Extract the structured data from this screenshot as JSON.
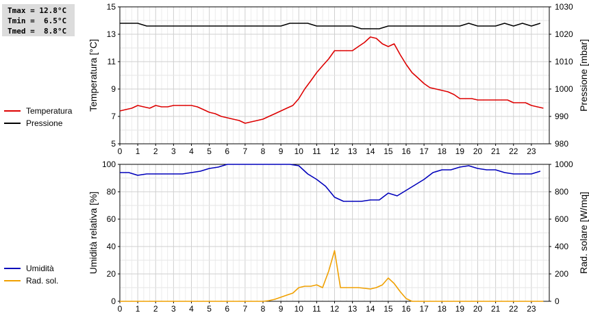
{
  "stats": {
    "tmax": "Tmax = 12.8°C",
    "tmin": "Tmin =  6.5°C",
    "tmed": "Tmed =  8.8°C"
  },
  "chart_data": [
    {
      "type": "line",
      "x_ticks": [
        "0",
        "1",
        "2",
        "3",
        "4",
        "5",
        "6",
        "7",
        "8",
        "9",
        "10",
        "11",
        "12",
        "13",
        "14",
        "15",
        "16",
        "17",
        "18",
        "19",
        "20",
        "21",
        "22",
        "23"
      ],
      "xlim": [
        0,
        24
      ],
      "ylabel_left": "Temperatura [°C]",
      "ylabel_right": "Pressione [mbar]",
      "ylim_left": [
        5,
        15
      ],
      "yticks_left": [
        "5",
        "7",
        "9",
        "11",
        "13",
        "15"
      ],
      "ylim_right": [
        980,
        1030
      ],
      "yticks_right": [
        "980",
        "990",
        "1000",
        "1010",
        "1020",
        "1030"
      ],
      "grid": true,
      "legend_placement": "left",
      "series": [
        {
          "name": "Temperatura",
          "axis": "left",
          "color": "#dd0000",
          "x": [
            0,
            0.33,
            0.67,
            1,
            1.33,
            1.67,
            2,
            2.33,
            2.67,
            3,
            3.33,
            3.67,
            4,
            4.33,
            4.67,
            5,
            5.33,
            5.67,
            6,
            6.33,
            6.67,
            7,
            7.33,
            7.67,
            8,
            8.33,
            8.67,
            9,
            9.33,
            9.67,
            10,
            10.33,
            10.67,
            11,
            11.33,
            11.67,
            12,
            12.33,
            12.67,
            13,
            13.33,
            13.67,
            14,
            14.33,
            14.67,
            15,
            15.33,
            15.67,
            16,
            16.33,
            16.67,
            17,
            17.33,
            17.67,
            18,
            18.33,
            18.67,
            19,
            19.33,
            19.67,
            20,
            20.33,
            20.67,
            21,
            21.33,
            21.67,
            22,
            22.33,
            22.67,
            23,
            23.33,
            23.67
          ],
          "y": [
            7.4,
            7.5,
            7.6,
            7.8,
            7.7,
            7.6,
            7.8,
            7.7,
            7.7,
            7.8,
            7.8,
            7.8,
            7.8,
            7.7,
            7.5,
            7.3,
            7.2,
            7.0,
            6.9,
            6.8,
            6.7,
            6.5,
            6.6,
            6.7,
            6.8,
            7.0,
            7.2,
            7.4,
            7.6,
            7.8,
            8.3,
            9.0,
            9.6,
            10.2,
            10.7,
            11.2,
            11.8,
            11.8,
            11.8,
            11.8,
            12.1,
            12.4,
            12.8,
            12.7,
            12.3,
            12.1,
            12.3,
            11.5,
            10.8,
            10.2,
            9.8,
            9.4,
            9.1,
            9.0,
            8.9,
            8.8,
            8.6,
            8.3,
            8.3,
            8.3,
            8.2,
            8.2,
            8.2,
            8.2,
            8.2,
            8.2,
            8.0,
            8.0,
            8.0,
            7.8,
            7.7,
            7.6
          ]
        },
        {
          "name": "Pressione",
          "axis": "right",
          "color": "#000000",
          "x": [
            0,
            0.5,
            1,
            1.5,
            2,
            2.5,
            3,
            3.5,
            4,
            4.5,
            5,
            5.5,
            6,
            6.5,
            7,
            7.5,
            8,
            8.5,
            9,
            9.5,
            10,
            10.5,
            11,
            11.5,
            12,
            12.5,
            13,
            13.5,
            14,
            14.5,
            15,
            15.5,
            16,
            16.5,
            17,
            17.5,
            18,
            18.5,
            19,
            19.5,
            20,
            20.5,
            21,
            21.5,
            22,
            22.5,
            23,
            23.5
          ],
          "y": [
            1024,
            1024,
            1024,
            1023,
            1023,
            1023,
            1023,
            1023,
            1023,
            1023,
            1023,
            1023,
            1023,
            1023,
            1023,
            1023,
            1023,
            1023,
            1023,
            1024,
            1024,
            1024,
            1023,
            1023,
            1023,
            1023,
            1023,
            1022,
            1022,
            1022,
            1023,
            1023,
            1023,
            1023,
            1023,
            1023,
            1023,
            1023,
            1023,
            1024,
            1023,
            1023,
            1023,
            1024,
            1023,
            1024,
            1023,
            1024
          ]
        }
      ]
    },
    {
      "type": "line",
      "x_ticks": [
        "0",
        "1",
        "2",
        "3",
        "4",
        "5",
        "6",
        "7",
        "8",
        "9",
        "10",
        "11",
        "12",
        "13",
        "14",
        "15",
        "16",
        "17",
        "18",
        "19",
        "20",
        "21",
        "22",
        "23"
      ],
      "xlim": [
        0,
        24
      ],
      "ylabel_left": "Umidità relativa [%]",
      "ylabel_right": "Rad. solare [W/mq]",
      "ylim_left": [
        0,
        100
      ],
      "yticks_left": [
        "0",
        "20",
        "40",
        "60",
        "80",
        "100"
      ],
      "ylim_right": [
        0,
        1000
      ],
      "yticks_right": [
        "0",
        "200",
        "400",
        "600",
        "800",
        "1000"
      ],
      "grid": true,
      "legend_placement": "left",
      "series": [
        {
          "name": "Umidità",
          "axis": "left",
          "color": "#0000bb",
          "x": [
            0,
            0.5,
            1,
            1.5,
            2,
            2.5,
            3,
            3.5,
            4,
            4.5,
            5,
            5.5,
            6,
            6.5,
            7,
            7.5,
            8,
            8.5,
            9,
            9.5,
            10,
            10.5,
            11,
            11.5,
            12,
            12.5,
            13,
            13.5,
            14,
            14.5,
            15,
            15.5,
            16,
            16.5,
            17,
            17.5,
            18,
            18.5,
            19,
            19.5,
            20,
            20.5,
            21,
            21.5,
            22,
            22.5,
            23,
            23.5
          ],
          "y": [
            94,
            94,
            92,
            93,
            93,
            93,
            93,
            93,
            94,
            95,
            97,
            98,
            100,
            100,
            100,
            100,
            100,
            100,
            100,
            100,
            99,
            93,
            89,
            84,
            76,
            73,
            73,
            73,
            74,
            74,
            79,
            77,
            81,
            85,
            89,
            94,
            96,
            96,
            98,
            99,
            97,
            96,
            96,
            94,
            93,
            93,
            93,
            95
          ]
        },
        {
          "name": "Rad. sol.",
          "axis": "right",
          "color": "#f0a000",
          "x": [
            0,
            1,
            2,
            3,
            4,
            5,
            6,
            7,
            8,
            8.33,
            8.67,
            9,
            9.33,
            9.67,
            10,
            10.33,
            10.67,
            11,
            11.33,
            11.67,
            12,
            12.33,
            12.67,
            13,
            13.33,
            13.67,
            14,
            14.33,
            14.67,
            15,
            15.33,
            15.67,
            16,
            16.33,
            16.67,
            17,
            18,
            19,
            20,
            21,
            22,
            23,
            23.67
          ],
          "y": [
            0,
            0,
            0,
            0,
            0,
            0,
            0,
            0,
            0,
            5,
            15,
            30,
            45,
            60,
            100,
            110,
            110,
            120,
            100,
            220,
            370,
            100,
            100,
            100,
            100,
            95,
            90,
            100,
            120,
            170,
            130,
            70,
            20,
            0,
            0,
            0,
            0,
            0,
            0,
            0,
            0,
            0,
            0
          ]
        }
      ]
    }
  ]
}
